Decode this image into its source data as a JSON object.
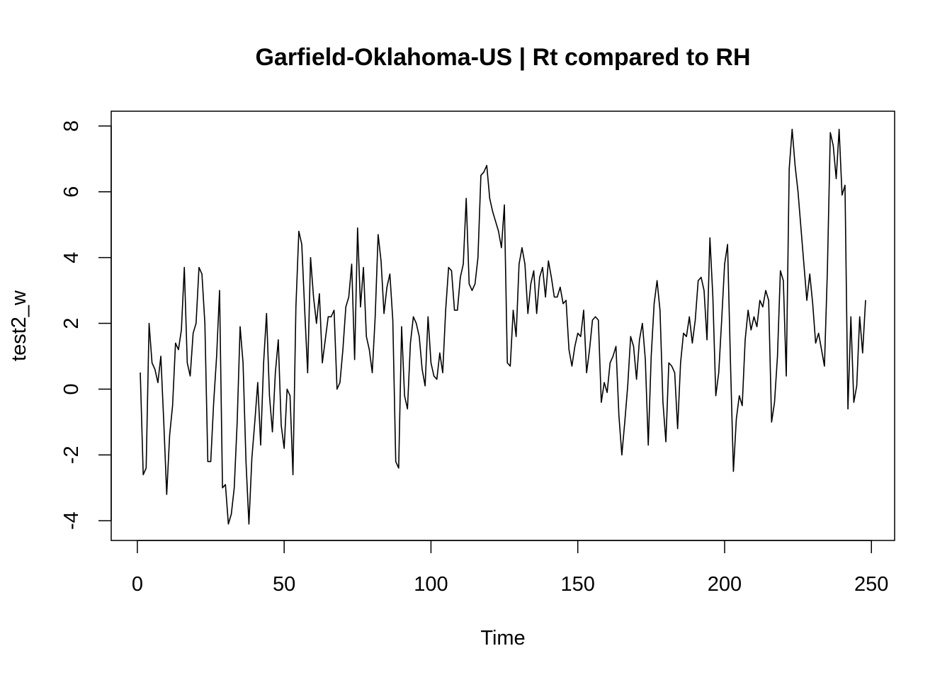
{
  "chart_data": {
    "type": "line",
    "title": "Garfield-Oklahoma-US | Rt compared to RH",
    "xlabel": "Time",
    "ylabel": "test2_w",
    "xlim": [
      -8.9,
      257.9
    ],
    "ylim": [
      -4.6,
      8.45
    ],
    "xticks": [
      0,
      50,
      100,
      150,
      200,
      250
    ],
    "yticks": [
      -4,
      -2,
      0,
      2,
      4,
      6,
      8
    ],
    "grid": false,
    "legend": "none",
    "line_color": "#000000",
    "series": [
      {
        "x_start": 1,
        "values": [
          0.5,
          -2.6,
          -2.4,
          2.0,
          0.8,
          0.6,
          0.2,
          1.0,
          -1.0,
          -3.2,
          -1.4,
          -0.5,
          1.4,
          1.2,
          1.8,
          3.7,
          0.8,
          0.4,
          1.7,
          2.0,
          3.7,
          3.5,
          2.0,
          -2.2,
          -2.2,
          -0.4,
          1.0,
          3.0,
          -3.0,
          -2.9,
          -4.1,
          -3.8,
          -3.0,
          -1.0,
          1.9,
          0.8,
          -2.2,
          -4.1,
          -2.1,
          -1.0,
          0.2,
          -1.7,
          0.8,
          2.3,
          -0.2,
          -1.3,
          0.5,
          1.5,
          -1.1,
          -1.8,
          0.0,
          -0.2,
          -2.6,
          2.5,
          4.8,
          4.4,
          2.4,
          0.5,
          4.0,
          2.8,
          2.0,
          2.9,
          0.8,
          1.5,
          2.2,
          2.2,
          2.4,
          0.0,
          0.2,
          1.2,
          2.5,
          2.8,
          3.8,
          0.9,
          4.9,
          2.5,
          3.7,
          1.6,
          1.2,
          0.5,
          2.2,
          4.7,
          3.9,
          2.3,
          3.1,
          3.5,
          2.1,
          -2.2,
          -2.4,
          1.9,
          -0.2,
          -0.6,
          1.4,
          2.2,
          2.0,
          1.6,
          0.6,
          0.1,
          2.2,
          0.8,
          0.4,
          0.3,
          1.1,
          0.5,
          2.4,
          3.7,
          3.6,
          2.4,
          2.4,
          3.4,
          3.8,
          5.8,
          3.2,
          3.0,
          3.2,
          4.0,
          6.5,
          6.6,
          6.8,
          5.8,
          5.4,
          5.1,
          4.8,
          4.3,
          5.6,
          0.8,
          0.7,
          2.4,
          1.6,
          3.8,
          4.3,
          3.8,
          2.3,
          3.2,
          3.6,
          2.3,
          3.4,
          3.7,
          2.8,
          3.9,
          3.4,
          2.8,
          2.8,
          3.1,
          2.6,
          2.7,
          1.2,
          0.7,
          1.3,
          1.7,
          1.6,
          2.4,
          0.5,
          1.2,
          2.1,
          2.2,
          2.1,
          -0.4,
          0.2,
          -0.1,
          0.8,
          1.0,
          1.3,
          -0.8,
          -2.0,
          -1.0,
          0.1,
          1.6,
          1.3,
          0.3,
          1.5,
          2.0,
          0.9,
          -1.7,
          1.0,
          2.6,
          3.3,
          2.4,
          -0.4,
          -1.6,
          0.8,
          0.7,
          0.5,
          -1.2,
          0.8,
          1.7,
          1.6,
          2.2,
          1.4,
          2.1,
          3.3,
          3.4,
          3.0,
          1.5,
          4.6,
          2.8,
          -0.2,
          0.5,
          2.1,
          3.8,
          4.4,
          0.8,
          -2.5,
          -0.9,
          -0.2,
          -0.5,
          1.5,
          2.4,
          1.8,
          2.2,
          1.9,
          2.7,
          2.5,
          3.0,
          2.7,
          -1.0,
          -0.4,
          1.0,
          3.6,
          3.3,
          0.4,
          6.7,
          7.9,
          6.8,
          6.0,
          4.9,
          3.8,
          2.7,
          3.5,
          2.6,
          1.4,
          1.7,
          1.2,
          0.7,
          3.6,
          7.8,
          7.4,
          6.4,
          7.9,
          5.9,
          6.2,
          -0.6,
          2.2,
          -0.4,
          0.1,
          2.2,
          1.1,
          2.7
        ]
      }
    ]
  }
}
